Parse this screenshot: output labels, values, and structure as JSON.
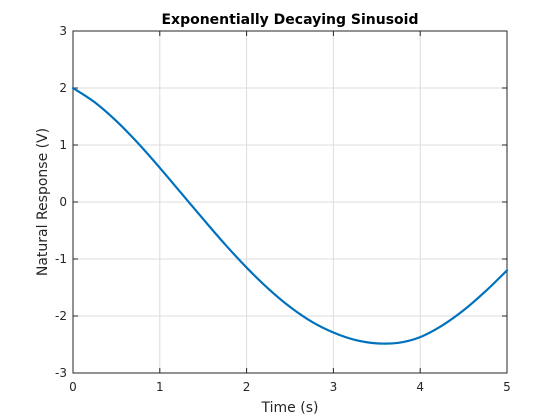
{
  "chart_data": {
    "type": "line",
    "title": "Exponentially Decaying Sinusoid",
    "xlabel": "Time (s)",
    "ylabel": "Natural Response (V)",
    "xlim": [
      0,
      5
    ],
    "ylim": [
      -3,
      3
    ],
    "xticks": [
      0,
      1,
      2,
      3,
      4,
      5
    ],
    "yticks": [
      -3,
      -2,
      -1,
      0,
      1,
      2,
      3
    ],
    "grid": true,
    "box": true,
    "line_color": "#0072BD",
    "axis_color": "#262626",
    "grid_color": "#dcdcdc",
    "series": [
      {
        "x": [
          0,
          0.25,
          0.5,
          0.75,
          1,
          1.25,
          1.5,
          1.75,
          2,
          2.25,
          2.5,
          2.75,
          3,
          3.25,
          3.5,
          3.75,
          4,
          4.25,
          4.5,
          4.75,
          5
        ],
        "y": [
          2.0,
          1.75,
          1.42,
          1.03,
          0.6,
          0.15,
          -0.3,
          -0.74,
          -1.15,
          -1.52,
          -1.84,
          -2.1,
          -2.29,
          -2.42,
          -2.48,
          -2.47,
          -2.37,
          -2.17,
          -1.9,
          -1.57,
          -1.2
        ]
      }
    ]
  }
}
